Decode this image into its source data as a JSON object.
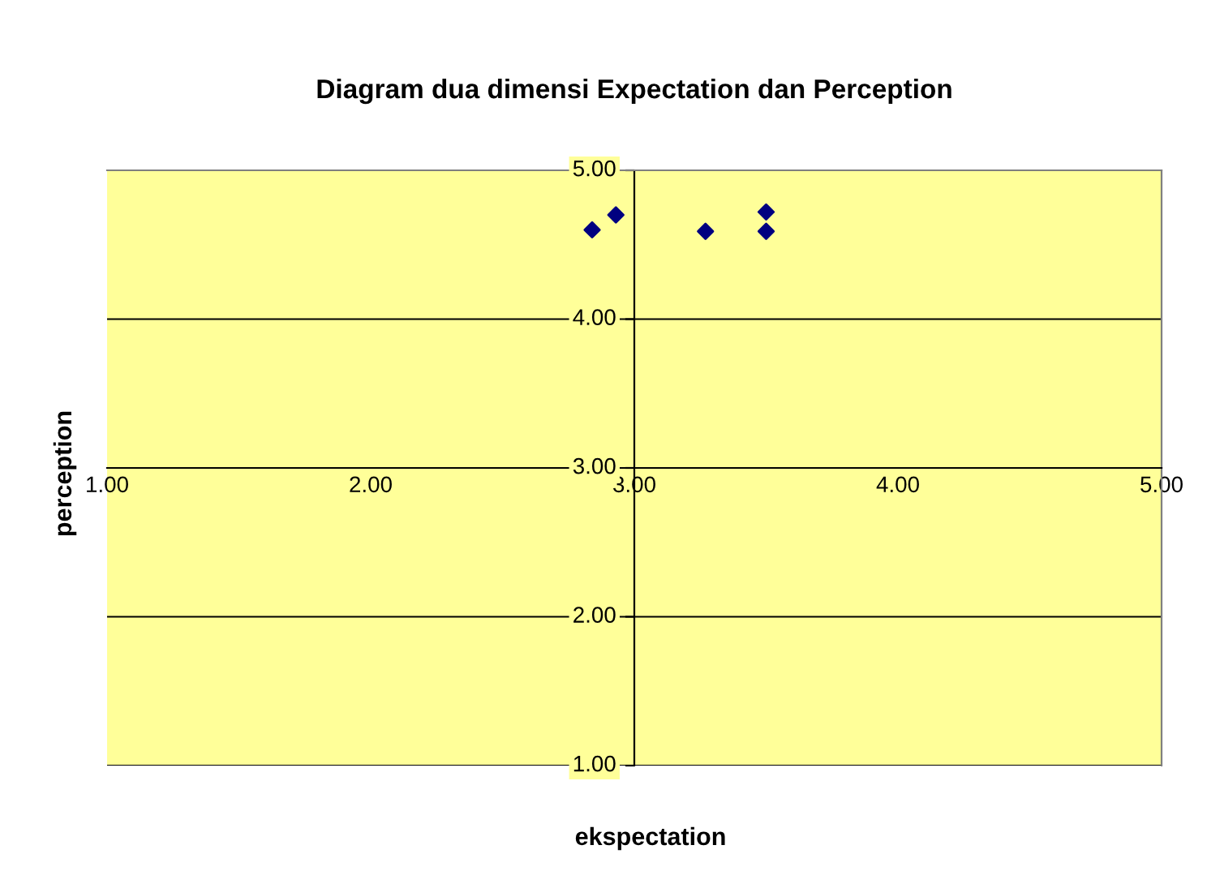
{
  "chart_data": {
    "type": "scatter",
    "title": "Diagram dua dimensi Expectation dan Perception",
    "xlabel": "ekspectation",
    "ylabel": "perception",
    "x": [
      2.84,
      2.93,
      3.27,
      3.5,
      3.5
    ],
    "series": [
      {
        "color": "#000080",
        "values": [
          4.6,
          4.7,
          4.59,
          4.72,
          4.59
        ]
      }
    ],
    "marker": "diamond",
    "grid": "y",
    "legend": false,
    "xlim": [
      1,
      5
    ],
    "ylim": [
      1,
      5
    ],
    "xticks": [
      {
        "value": 1,
        "label": "1.00"
      },
      {
        "value": 2,
        "label": "2.00"
      },
      {
        "value": 3,
        "label": "3.00"
      },
      {
        "value": 4,
        "label": "4.00"
      },
      {
        "value": 5,
        "label": "5.00"
      }
    ],
    "yticks": [
      {
        "value": 1,
        "label": "1.00"
      },
      {
        "value": 2,
        "label": "2.00"
      },
      {
        "value": 3,
        "label": "3.00"
      },
      {
        "value": 4,
        "label": "4.00"
      },
      {
        "value": 5,
        "label": "5.00"
      }
    ]
  }
}
